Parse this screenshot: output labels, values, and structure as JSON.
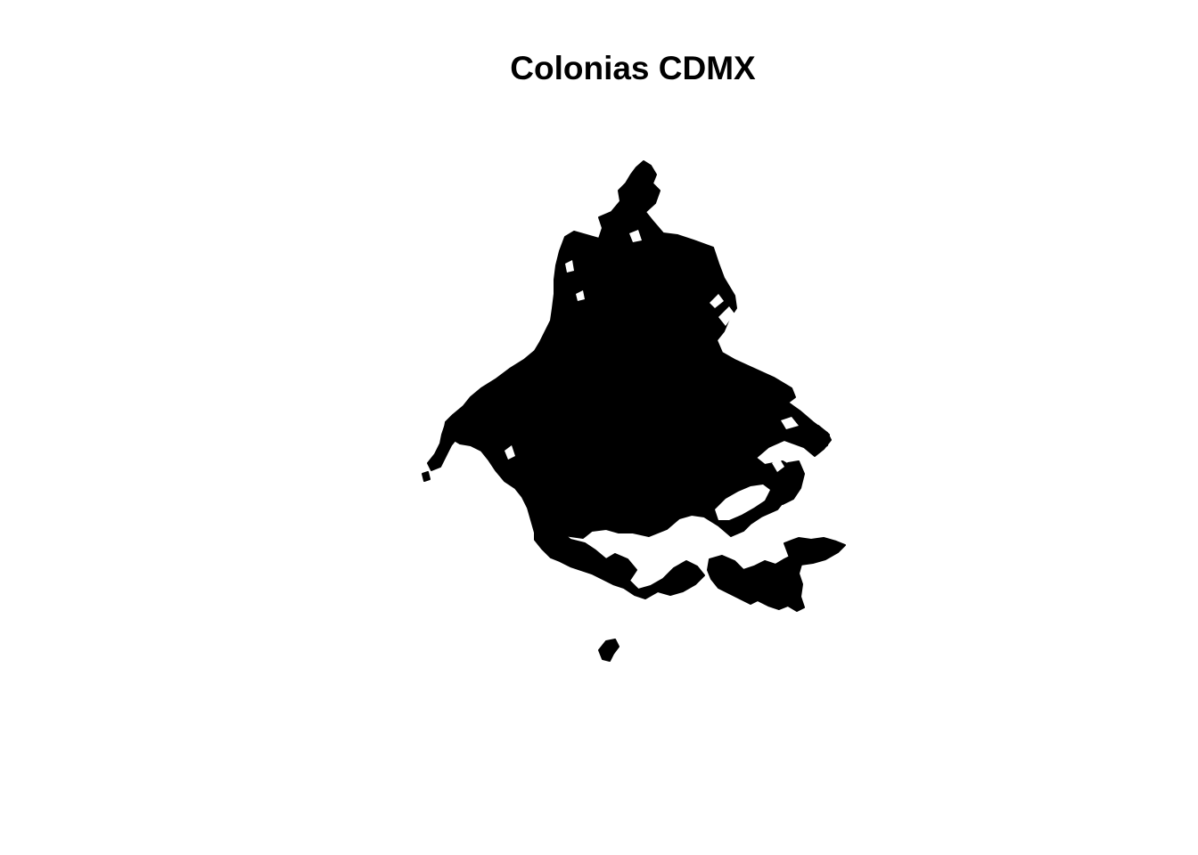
{
  "plot": {
    "title": "Colonias CDMX"
  },
  "map": {
    "fill_color": "#000000",
    "stroke_color": "#000000",
    "background": "#ffffff"
  }
}
